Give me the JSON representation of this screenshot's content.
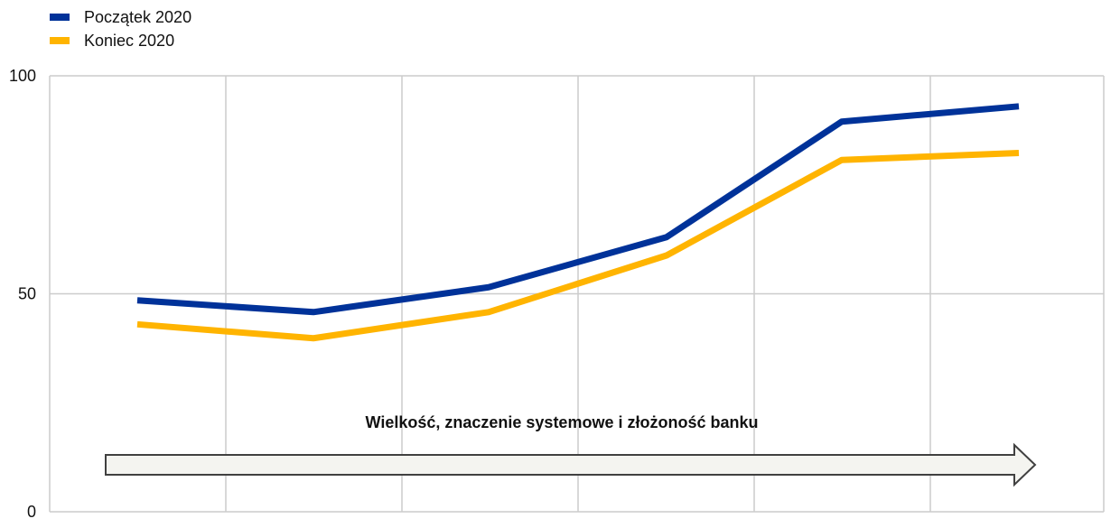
{
  "legend": [
    {
      "label": "Początek 2020",
      "color": "#003299"
    },
    {
      "label": "Koniec 2020",
      "color": "#FFB400"
    }
  ],
  "chart_data": {
    "type": "line",
    "x": [
      1,
      2,
      3,
      4,
      5,
      6
    ],
    "series": [
      {
        "name": "Początek 2020",
        "color": "#003299",
        "values": [
          48.5,
          45.8,
          51.5,
          63.0,
          89.5,
          93.0
        ]
      },
      {
        "name": "Koniec 2020",
        "color": "#FFB400",
        "values": [
          43.0,
          39.8,
          45.8,
          58.8,
          80.7,
          82.3
        ]
      }
    ],
    "yticks": [
      0,
      50,
      100
    ],
    "ylim": [
      0,
      100
    ],
    "grid": true,
    "legend_position": "top-left",
    "annotation": "Wielkość, znaczenie systemowe  i złożoność banku"
  }
}
